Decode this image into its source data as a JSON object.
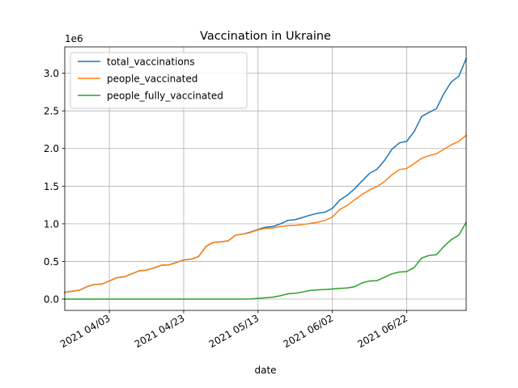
{
  "chart_data": {
    "type": "line",
    "title": "Vaccination in Ukraine",
    "xlabel": "date",
    "ylabel": "",
    "y_scale_note": "1e6",
    "xlim": [
      "2021-03-22",
      "2021-07-08"
    ],
    "ylim": [
      -150000,
      3350000
    ],
    "x_ticks": [
      {
        "date": "2021-04-03",
        "label": "2021 04/03"
      },
      {
        "date": "2021-04-23",
        "label": "2021 04/23"
      },
      {
        "date": "2021-05-13",
        "label": "2021 05/13"
      },
      {
        "date": "2021-06-02",
        "label": "2021 06/02"
      },
      {
        "date": "2021-06-22",
        "label": "2021 06/22"
      }
    ],
    "y_ticks": [
      {
        "value": 0,
        "label": "0.0"
      },
      {
        "value": 500000,
        "label": "0.5"
      },
      {
        "value": 1000000,
        "label": "1.0"
      },
      {
        "value": 1500000,
        "label": "1.5"
      },
      {
        "value": 2000000,
        "label": "2.0"
      },
      {
        "value": 2500000,
        "label": "2.5"
      },
      {
        "value": 3000000,
        "label": "3.0"
      }
    ],
    "grid": true,
    "legend_position": "top-left",
    "series": [
      {
        "name": "total_vaccinations",
        "color": "#1f77b4",
        "points": [
          [
            "2021-03-22",
            90000
          ],
          [
            "2021-03-24",
            105000
          ],
          [
            "2021-03-26",
            120000
          ],
          [
            "2021-03-28",
            165000
          ],
          [
            "2021-03-30",
            195000
          ],
          [
            "2021-04-01",
            200000
          ],
          [
            "2021-04-03",
            240000
          ],
          [
            "2021-04-05",
            285000
          ],
          [
            "2021-04-07",
            295000
          ],
          [
            "2021-04-09",
            335000
          ],
          [
            "2021-04-11",
            375000
          ],
          [
            "2021-04-13",
            385000
          ],
          [
            "2021-04-15",
            415000
          ],
          [
            "2021-04-17",
            450000
          ],
          [
            "2021-04-19",
            455000
          ],
          [
            "2021-04-21",
            485000
          ],
          [
            "2021-04-23",
            520000
          ],
          [
            "2021-04-25",
            530000
          ],
          [
            "2021-04-27",
            565000
          ],
          [
            "2021-04-29",
            700000
          ],
          [
            "2021-05-01",
            755000
          ],
          [
            "2021-05-03",
            760000
          ],
          [
            "2021-05-05",
            775000
          ],
          [
            "2021-05-07",
            850000
          ],
          [
            "2021-05-09",
            865000
          ],
          [
            "2021-05-11",
            890000
          ],
          [
            "2021-05-13",
            925000
          ],
          [
            "2021-05-15",
            955000
          ],
          [
            "2021-05-17",
            965000
          ],
          [
            "2021-05-19",
            1000000
          ],
          [
            "2021-05-21",
            1045000
          ],
          [
            "2021-05-23",
            1055000
          ],
          [
            "2021-05-25",
            1085000
          ],
          [
            "2021-05-27",
            1115000
          ],
          [
            "2021-05-29",
            1140000
          ],
          [
            "2021-05-31",
            1155000
          ],
          [
            "2021-06-02",
            1205000
          ],
          [
            "2021-06-04",
            1315000
          ],
          [
            "2021-06-06",
            1380000
          ],
          [
            "2021-06-08",
            1465000
          ],
          [
            "2021-06-10",
            1570000
          ],
          [
            "2021-06-12",
            1670000
          ],
          [
            "2021-06-14",
            1725000
          ],
          [
            "2021-06-16",
            1840000
          ],
          [
            "2021-06-18",
            1990000
          ],
          [
            "2021-06-20",
            2075000
          ],
          [
            "2021-06-22",
            2095000
          ],
          [
            "2021-06-24",
            2225000
          ],
          [
            "2021-06-26",
            2425000
          ],
          [
            "2021-06-28",
            2480000
          ],
          [
            "2021-06-30",
            2530000
          ],
          [
            "2021-07-02",
            2730000
          ],
          [
            "2021-07-04",
            2885000
          ],
          [
            "2021-07-06",
            2960000
          ],
          [
            "2021-07-08",
            3195000
          ]
        ]
      },
      {
        "name": "people_vaccinated",
        "color": "#ff7f0e",
        "points": [
          [
            "2021-03-22",
            90000
          ],
          [
            "2021-03-24",
            105000
          ],
          [
            "2021-03-26",
            120000
          ],
          [
            "2021-03-28",
            165000
          ],
          [
            "2021-03-30",
            195000
          ],
          [
            "2021-04-01",
            200000
          ],
          [
            "2021-04-03",
            240000
          ],
          [
            "2021-04-05",
            285000
          ],
          [
            "2021-04-07",
            295000
          ],
          [
            "2021-04-09",
            335000
          ],
          [
            "2021-04-11",
            375000
          ],
          [
            "2021-04-13",
            385000
          ],
          [
            "2021-04-15",
            415000
          ],
          [
            "2021-04-17",
            450000
          ],
          [
            "2021-04-19",
            455000
          ],
          [
            "2021-04-21",
            485000
          ],
          [
            "2021-04-23",
            520000
          ],
          [
            "2021-04-25",
            530000
          ],
          [
            "2021-04-27",
            565000
          ],
          [
            "2021-04-29",
            700000
          ],
          [
            "2021-05-01",
            755000
          ],
          [
            "2021-05-03",
            760000
          ],
          [
            "2021-05-05",
            775000
          ],
          [
            "2021-05-07",
            850000
          ],
          [
            "2021-05-09",
            865000
          ],
          [
            "2021-05-11",
            885000
          ],
          [
            "2021-05-13",
            920000
          ],
          [
            "2021-05-15",
            940000
          ],
          [
            "2021-05-17",
            945000
          ],
          [
            "2021-05-19",
            965000
          ],
          [
            "2021-05-21",
            975000
          ],
          [
            "2021-05-23",
            980000
          ],
          [
            "2021-05-25",
            990000
          ],
          [
            "2021-05-27",
            1005000
          ],
          [
            "2021-05-29",
            1020000
          ],
          [
            "2021-05-31",
            1045000
          ],
          [
            "2021-06-02",
            1090000
          ],
          [
            "2021-06-04",
            1190000
          ],
          [
            "2021-06-06",
            1245000
          ],
          [
            "2021-06-08",
            1320000
          ],
          [
            "2021-06-10",
            1390000
          ],
          [
            "2021-06-12",
            1450000
          ],
          [
            "2021-06-14",
            1495000
          ],
          [
            "2021-06-16",
            1560000
          ],
          [
            "2021-06-18",
            1650000
          ],
          [
            "2021-06-20",
            1720000
          ],
          [
            "2021-06-22",
            1735000
          ],
          [
            "2021-06-24",
            1800000
          ],
          [
            "2021-06-26",
            1870000
          ],
          [
            "2021-06-28",
            1905000
          ],
          [
            "2021-06-30",
            1930000
          ],
          [
            "2021-07-02",
            1990000
          ],
          [
            "2021-07-04",
            2050000
          ],
          [
            "2021-07-06",
            2095000
          ],
          [
            "2021-07-08",
            2175000
          ]
        ]
      },
      {
        "name": "people_fully_vaccinated",
        "color": "#2ca02c",
        "points": [
          [
            "2021-03-22",
            0
          ],
          [
            "2021-04-03",
            0
          ],
          [
            "2021-04-23",
            0
          ],
          [
            "2021-05-09",
            0
          ],
          [
            "2021-05-11",
            2000
          ],
          [
            "2021-05-13",
            10000
          ],
          [
            "2021-05-15",
            18000
          ],
          [
            "2021-05-17",
            26000
          ],
          [
            "2021-05-19",
            45000
          ],
          [
            "2021-05-21",
            70000
          ],
          [
            "2021-05-23",
            78000
          ],
          [
            "2021-05-25",
            95000
          ],
          [
            "2021-05-27",
            115000
          ],
          [
            "2021-05-29",
            123000
          ],
          [
            "2021-05-31",
            128000
          ],
          [
            "2021-06-02",
            135000
          ],
          [
            "2021-06-04",
            143000
          ],
          [
            "2021-06-06",
            148000
          ],
          [
            "2021-06-08",
            165000
          ],
          [
            "2021-06-10",
            215000
          ],
          [
            "2021-06-12",
            240000
          ],
          [
            "2021-06-14",
            245000
          ],
          [
            "2021-06-16",
            290000
          ],
          [
            "2021-06-18",
            335000
          ],
          [
            "2021-06-20",
            360000
          ],
          [
            "2021-06-22",
            365000
          ],
          [
            "2021-06-24",
            420000
          ],
          [
            "2021-06-26",
            545000
          ],
          [
            "2021-06-28",
            580000
          ],
          [
            "2021-06-30",
            590000
          ],
          [
            "2021-07-02",
            700000
          ],
          [
            "2021-07-04",
            790000
          ],
          [
            "2021-07-06",
            850000
          ],
          [
            "2021-07-08",
            1020000
          ]
        ]
      }
    ]
  }
}
